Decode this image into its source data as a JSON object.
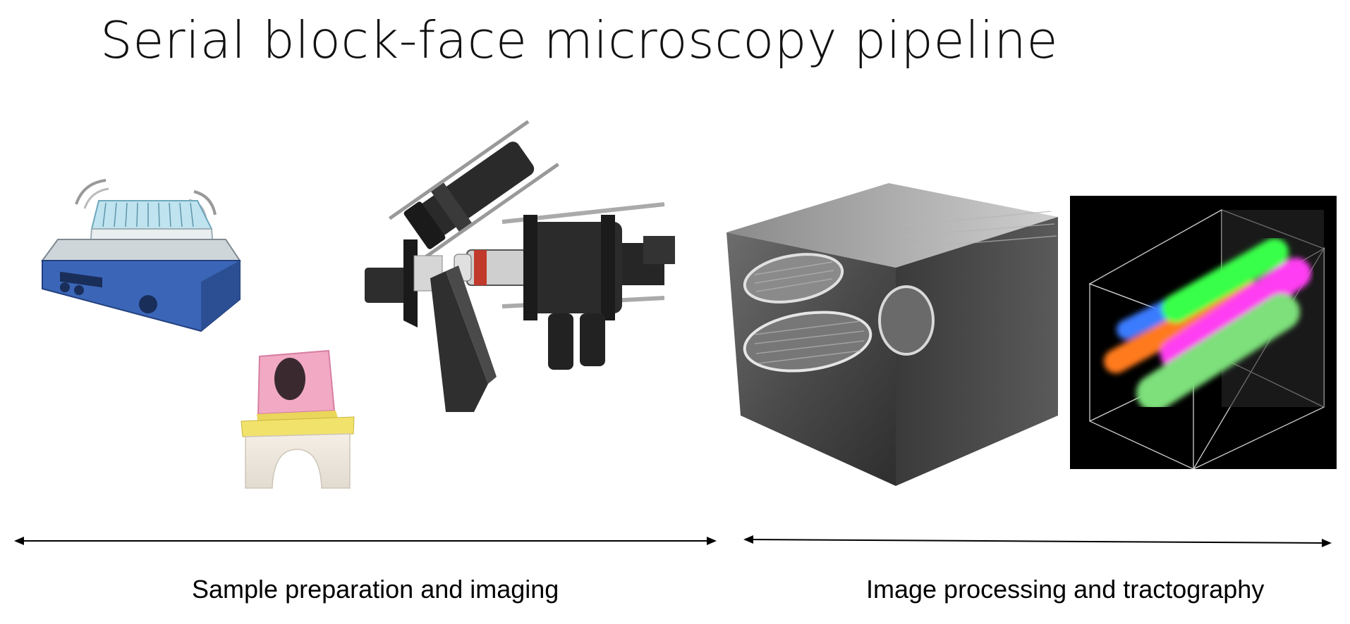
{
  "title": "Serial block-face microscopy pipeline",
  "stages": [
    {
      "label": "Sample preparation and imaging"
    },
    {
      "label": "Image processing and tractography"
    }
  ],
  "illustrations": [
    {
      "name": "orbital-shaker-icon"
    },
    {
      "name": "embedded-sample-block-icon"
    },
    {
      "name": "microscope-assembly-icon"
    },
    {
      "name": "volume-rendering-image"
    },
    {
      "name": "tractography-image"
    }
  ],
  "tract_colors": [
    "#3a7bff",
    "#ff7a1c",
    "#39ff4a",
    "#ff3cf2",
    "#7de07a"
  ]
}
